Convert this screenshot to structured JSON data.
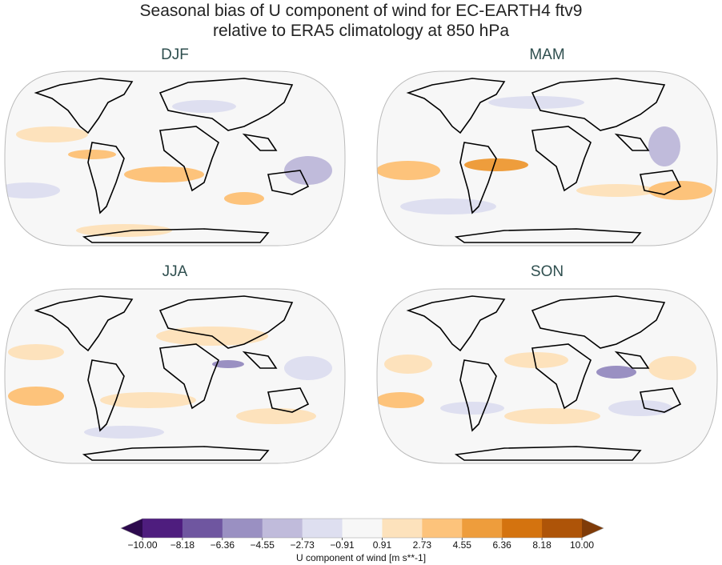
{
  "title_line1": "Seasonal bias of U component of wind for EC-EARTH4 ftv9",
  "title_line2": "relative to ERA5 climatology at 850 hPa",
  "panels": [
    {
      "label": "DJF"
    },
    {
      "label": "MAM"
    },
    {
      "label": "JJA"
    },
    {
      "label": "SON"
    }
  ],
  "colorbar": {
    "label": "U component of wind [m s**-1]",
    "ticks": [
      "−10.00",
      "−8.18",
      "−6.36",
      "−4.55",
      "−2.73",
      "−0.91",
      "0.91",
      "2.73",
      "4.55",
      "6.36",
      "8.18",
      "10.00"
    ],
    "colors": [
      "#4e1d7e",
      "#6f56a0",
      "#9a90c2",
      "#c0bbdb",
      "#dedff0",
      "#f7f7f7",
      "#fde2bc",
      "#fdc37b",
      "#ee9d3c",
      "#d4730f",
      "#ae5408"
    ],
    "under_color": "#2d0a4e",
    "over_color": "#7f3b08",
    "extend": "both",
    "colormap": "PuOr_r"
  }
}
